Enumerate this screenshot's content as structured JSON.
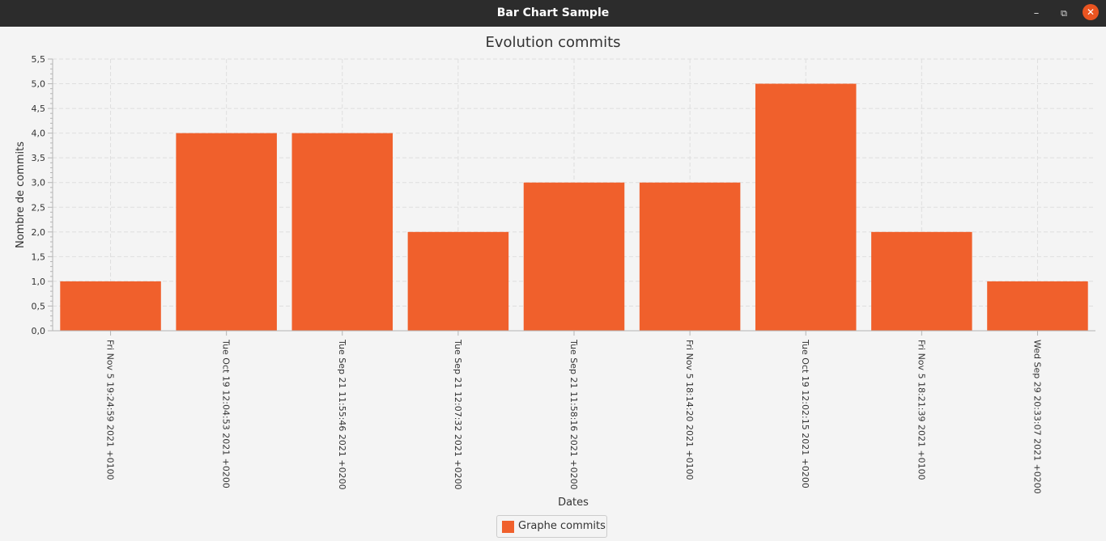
{
  "window": {
    "title": "Bar Chart Sample",
    "minimize_icon": "minimize-icon",
    "maximize_icon": "maximize-icon",
    "close_icon": "close-icon",
    "minimize_glyph": "–",
    "maximize_glyph": "⧉",
    "close_glyph": "✕"
  },
  "colors": {
    "bar": "#f0602c",
    "grid": "#dedede",
    "axis": "#b5b5b5",
    "close_button": "#e95420"
  },
  "chart_data": {
    "type": "bar",
    "title": "Evolution commits",
    "xlabel": "Dates",
    "ylabel": "Nombre de commits",
    "ylim": [
      0,
      5.5
    ],
    "ytick_step": 0.5,
    "ytick_labels": [
      "0,0",
      "0,5",
      "1,0",
      "1,5",
      "2,0",
      "2,5",
      "3,0",
      "3,5",
      "4,0",
      "4,5",
      "5,0",
      "5,5"
    ],
    "grid": true,
    "legend": "bottom-center",
    "categories": [
      "Fri Nov 5 19:24:59 2021 +0100",
      "Tue Oct 19 12:04:53 2021 +0200",
      "Tue Sep 21 11:55:46 2021 +0200",
      "Tue Sep 21 12:07:32 2021 +0200",
      "Tue Sep 21 11:58:16 2021 +0200",
      "Fri Nov 5 18:14:20 2021 +0100",
      "Tue Oct 19 12:02:15 2021 +0200",
      "Fri Nov 5 18:21:39 2021 +0100",
      "Wed Sep 29 20:33:07 2021 +0200"
    ],
    "series": [
      {
        "name": "Graphe commits",
        "values": [
          1,
          4,
          4,
          2,
          3,
          3,
          5,
          2,
          1
        ]
      }
    ]
  }
}
